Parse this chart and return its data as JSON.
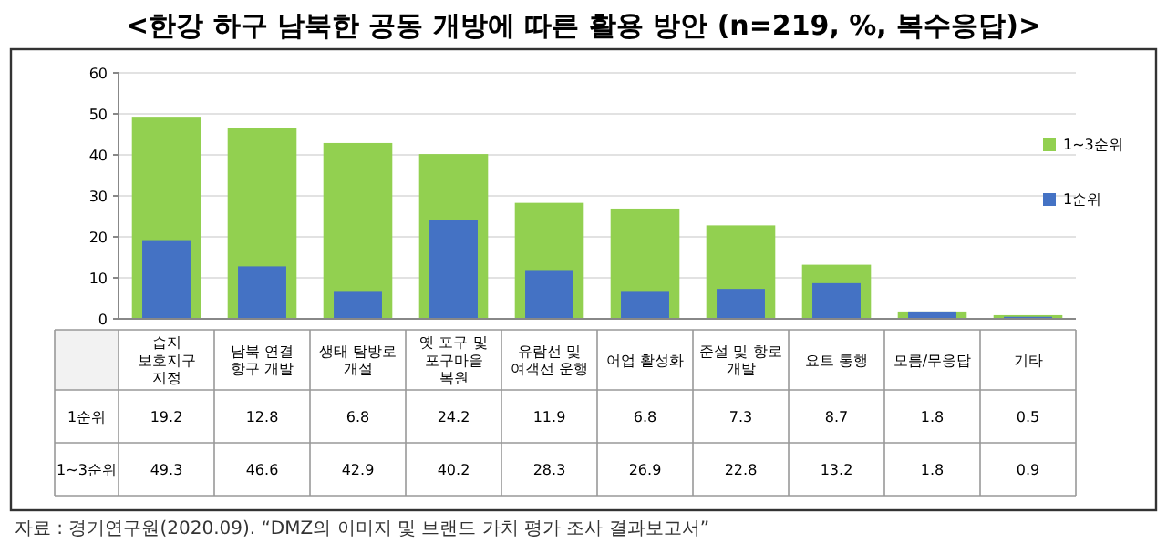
{
  "chart_data": {
    "type": "bar",
    "title": "<한강 하구 남북한 공동 개방에 따른 활용 방안 (n=219, %, 복수응답)>",
    "categories": [
      "습지 보호지구 지정",
      "남북 연결 항구 개발",
      "생태 탐방로 개설",
      "옛 포구 및 포구마을 복원",
      "유람선 및 여객선 운행",
      "어업 활성화",
      "준설 및 항로 개발",
      "요트 통행",
      "모름/무응답",
      "기타"
    ],
    "series": [
      {
        "name": "1~3순위",
        "color": "#92d050",
        "values": [
          49.3,
          46.6,
          42.9,
          40.2,
          28.3,
          26.9,
          22.8,
          13.2,
          1.8,
          0.9
        ]
      },
      {
        "name": "1순위",
        "color": "#4472c4",
        "values": [
          19.2,
          12.8,
          6.8,
          24.2,
          11.9,
          6.8,
          7.3,
          8.7,
          1.8,
          0.5
        ]
      }
    ],
    "ylim": [
      0,
      60
    ],
    "yticks": [
      0,
      10,
      20,
      30,
      40,
      50,
      60
    ],
    "grid": "y",
    "legend": "right",
    "data_labels": true,
    "annotations": [
      "자료 : 경기연구원(2020.09). “DMZ의 이미지 및 브랜드 가치 평가 조사 결과보고서”"
    ]
  }
}
